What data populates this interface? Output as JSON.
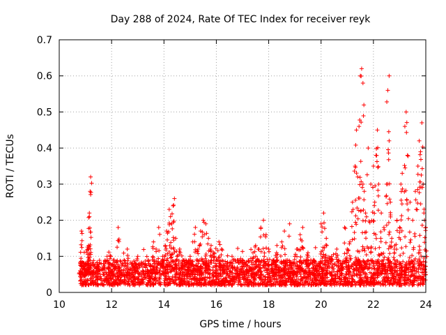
{
  "chart_data": {
    "type": "scatter",
    "title": "Day 288 of 2024, Rate Of TEC Index for receiver reyk",
    "xlabel": "GPS time / hours",
    "ylabel": "ROTI / TECUs",
    "xlim": [
      10,
      24
    ],
    "ylim": [
      0,
      0.7
    ],
    "xticks": [
      "10",
      "12",
      "14",
      "16",
      "18",
      "20",
      "22",
      "24"
    ],
    "yticks": [
      "0",
      "0.1",
      "0.2",
      "0.3",
      "0.4",
      "0.5",
      "0.6",
      "0.7"
    ],
    "grid": true,
    "marker": "+",
    "color": "#ff0000",
    "series": [
      {
        "x": [
          10.8,
          10.85,
          10.95,
          11.0,
          11.05,
          11.1,
          11.15,
          11.18,
          11.2,
          11.15,
          11.12,
          10.85,
          11.0,
          11.3,
          11.5,
          11.7,
          11.9,
          12.0,
          12.1,
          12.25,
          12.3,
          12.4,
          12.6,
          12.8,
          12.9,
          13.0,
          13.2,
          13.4,
          13.6,
          13.7,
          13.8,
          13.95,
          14.0,
          14.05,
          14.1,
          14.2,
          14.25,
          14.3,
          14.35,
          14.4,
          14.45,
          14.5,
          14.6,
          14.7,
          14.8,
          14.9,
          15.0,
          15.1,
          15.2,
          15.3,
          15.4,
          15.5,
          15.6,
          15.7,
          15.8,
          15.9,
          16.0,
          16.1,
          16.2,
          16.4,
          16.6,
          16.8,
          17.0,
          17.2,
          17.4,
          17.5,
          17.6,
          17.7,
          17.8,
          17.9,
          18.0,
          18.2,
          18.3,
          18.5,
          18.6,
          18.8,
          19.0,
          19.1,
          19.2,
          19.3,
          19.5,
          19.7,
          19.9,
          20.0,
          20.1,
          20.2,
          20.4,
          20.6,
          20.8,
          20.9,
          21.0,
          21.1,
          21.2,
          21.3,
          21.35,
          21.4,
          21.45,
          21.5,
          21.55,
          21.6,
          21.6,
          21.65,
          21.7,
          21.8,
          21.9,
          22.0,
          22.05,
          22.1,
          22.15,
          22.2,
          22.3,
          22.4,
          22.5,
          22.55,
          22.6,
          22.6,
          22.65,
          22.7,
          22.8,
          22.9,
          23.0,
          23.05,
          23.1,
          23.2,
          23.25,
          23.3,
          23.4,
          23.5,
          23.6,
          23.7,
          23.75,
          23.8,
          23.85,
          23.9,
          23.95,
          24.0
        ],
        "y": [
          0.06,
          0.055,
          0.045,
          0.05,
          0.06,
          0.12,
          0.21,
          0.28,
          0.32,
          0.22,
          0.13,
          0.17,
          0.08,
          0.06,
          0.07,
          0.05,
          0.08,
          0.06,
          0.09,
          0.18,
          0.07,
          0.05,
          0.12,
          0.08,
          0.07,
          0.1,
          0.06,
          0.09,
          0.14,
          0.12,
          0.18,
          0.1,
          0.09,
          0.13,
          0.17,
          0.23,
          0.21,
          0.19,
          0.24,
          0.26,
          0.15,
          0.1,
          0.12,
          0.08,
          0.09,
          0.07,
          0.1,
          0.14,
          0.18,
          0.12,
          0.17,
          0.2,
          0.19,
          0.15,
          0.13,
          0.11,
          0.09,
          0.14,
          0.12,
          0.08,
          0.1,
          0.07,
          0.09,
          0.06,
          0.11,
          0.13,
          0.12,
          0.18,
          0.2,
          0.16,
          0.12,
          0.09,
          0.11,
          0.14,
          0.17,
          0.19,
          0.1,
          0.12,
          0.16,
          0.18,
          0.11,
          0.09,
          0.08,
          0.19,
          0.22,
          0.15,
          0.1,
          0.12,
          0.08,
          0.18,
          0.12,
          0.14,
          0.25,
          0.35,
          0.45,
          0.32,
          0.46,
          0.6,
          0.62,
          0.58,
          0.3,
          0.28,
          0.22,
          0.4,
          0.3,
          0.35,
          0.25,
          0.38,
          0.45,
          0.3,
          0.22,
          0.18,
          0.3,
          0.56,
          0.6,
          0.42,
          0.25,
          0.15,
          0.12,
          0.2,
          0.18,
          0.3,
          0.33,
          0.46,
          0.5,
          0.38,
          0.25,
          0.2,
          0.28,
          0.35,
          0.42,
          0.39,
          0.47,
          0.3,
          0.2,
          0.18
        ],
        "band": {
          "x_start": 10.8,
          "x_end": 24.0,
          "low": 0.02,
          "high": 0.09
        }
      }
    ]
  }
}
